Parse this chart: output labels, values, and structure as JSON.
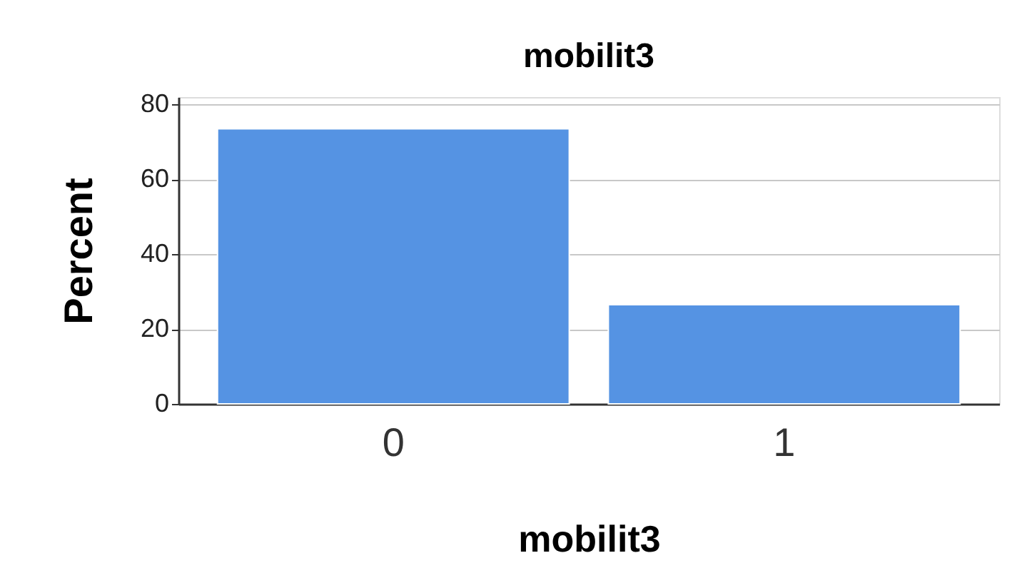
{
  "chart_data": {
    "type": "bar",
    "title": "mobilit3",
    "xlabel": "mobilit3",
    "ylabel": "Percent",
    "categories": [
      "0",
      "1"
    ],
    "values": [
      73.5,
      26.5
    ],
    "color": "#5593e3",
    "ylim": [
      0,
      82
    ],
    "yticks": [
      0,
      20,
      40,
      60,
      80
    ],
    "grid": "y"
  }
}
